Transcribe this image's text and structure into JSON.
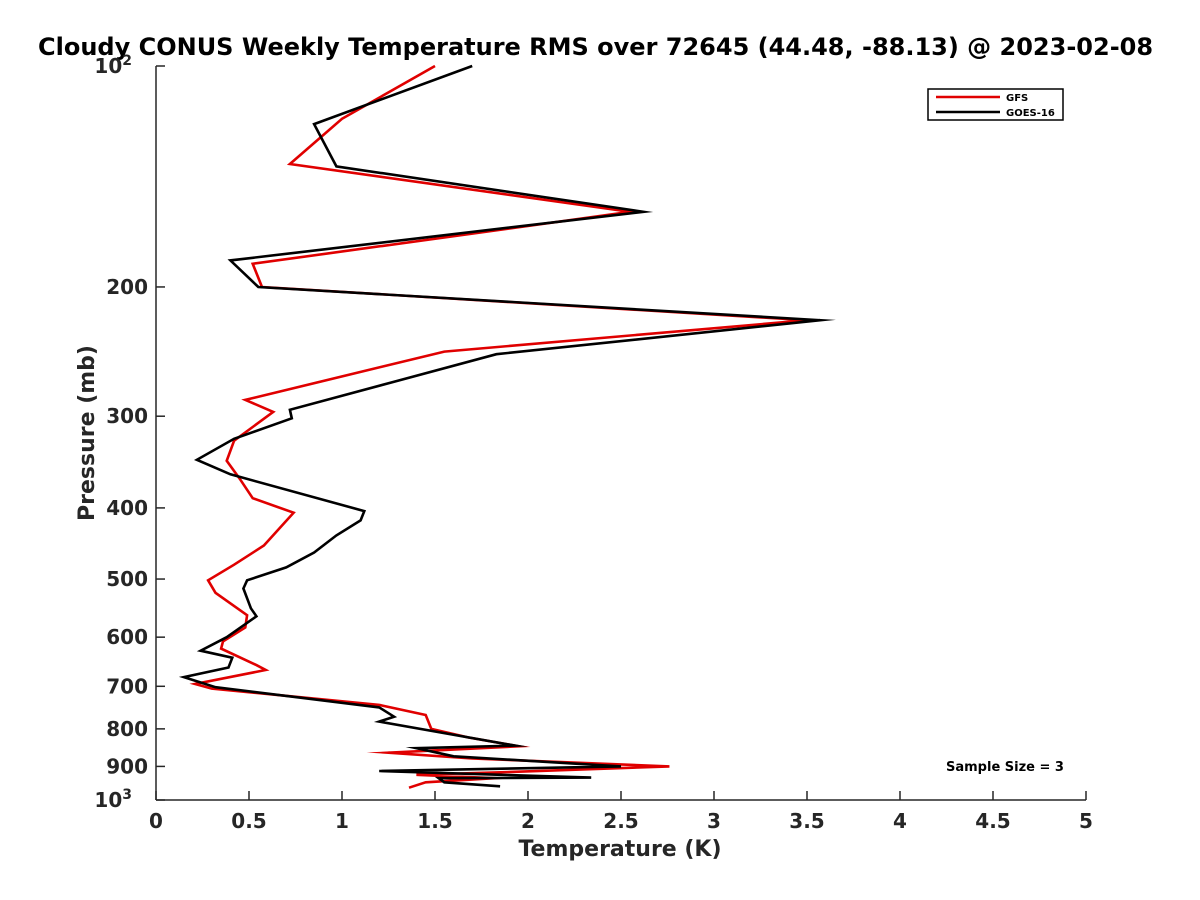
{
  "chart_data": {
    "type": "line",
    "title": "Cloudy CONUS Weekly Temperature RMS over 72645 (44.48, -88.13) @ 2023-02-08",
    "xlabel": "Temperature (K)",
    "ylabel": "Pressure (mb)",
    "xlim": [
      0,
      5
    ],
    "ylim": [
      100,
      1000
    ],
    "y_scale": "log",
    "y_reversed": true,
    "x_ticks": [
      "0",
      "0.5",
      "1",
      "1.5",
      "2",
      "2.5",
      "3",
      "3.5",
      "4",
      "4.5",
      "5"
    ],
    "x_tick_values": [
      0,
      0.5,
      1,
      1.5,
      2,
      2.5,
      3,
      3.5,
      4,
      4.5,
      5
    ],
    "y_ticks": [
      {
        "value": 100,
        "base": "10",
        "exp": "2"
      },
      {
        "value": 200,
        "label": "200"
      },
      {
        "value": 300,
        "label": "300"
      },
      {
        "value": 400,
        "label": "400"
      },
      {
        "value": 500,
        "label": "500"
      },
      {
        "value": 600,
        "label": "600"
      },
      {
        "value": 700,
        "label": "700"
      },
      {
        "value": 800,
        "label": "800"
      },
      {
        "value": 900,
        "label": "900"
      },
      {
        "value": 1000,
        "base": "10",
        "exp": "3"
      }
    ],
    "legend_position": "top-right",
    "annotation": "Sample Size = 3",
    "series": [
      {
        "name": "GFS",
        "color": "#e00000",
        "points": [
          [
            1.5,
            100
          ],
          [
            1.0,
            118
          ],
          [
            0.72,
            136
          ],
          [
            2.55,
            158
          ],
          [
            0.52,
            186
          ],
          [
            0.57,
            200
          ],
          [
            3.5,
            222
          ],
          [
            1.55,
            245
          ],
          [
            0.48,
            285
          ],
          [
            0.63,
            296
          ],
          [
            0.42,
            324
          ],
          [
            0.38,
            345
          ],
          [
            0.45,
            365
          ],
          [
            0.52,
            388
          ],
          [
            0.74,
            406
          ],
          [
            0.58,
            450
          ],
          [
            0.42,
            478
          ],
          [
            0.28,
            502
          ],
          [
            0.32,
            522
          ],
          [
            0.49,
            560
          ],
          [
            0.48,
            582
          ],
          [
            0.36,
            608
          ],
          [
            0.35,
            622
          ],
          [
            0.54,
            655
          ],
          [
            0.59,
            665
          ],
          [
            0.21,
            695
          ],
          [
            0.3,
            705
          ],
          [
            1.2,
            742
          ],
          [
            1.45,
            766
          ],
          [
            1.48,
            800
          ],
          [
            1.68,
            822
          ],
          [
            1.95,
            845
          ],
          [
            1.25,
            862
          ],
          [
            1.7,
            878
          ],
          [
            2.76,
            900
          ],
          [
            1.95,
            915
          ],
          [
            1.4,
            924
          ],
          [
            1.82,
            934
          ],
          [
            1.45,
            946
          ],
          [
            1.36,
            962
          ]
        ]
      },
      {
        "name": "GOES-16",
        "color": "#000000",
        "points": [
          [
            1.7,
            100
          ],
          [
            0.85,
            120
          ],
          [
            0.97,
            137
          ],
          [
            2.62,
            158
          ],
          [
            0.4,
            184
          ],
          [
            0.55,
            200
          ],
          [
            3.57,
            222
          ],
          [
            1.83,
            247
          ],
          [
            0.72,
            294
          ],
          [
            0.73,
            302
          ],
          [
            0.42,
            322
          ],
          [
            0.22,
            344
          ],
          [
            0.4,
            360
          ],
          [
            1.12,
            404
          ],
          [
            1.1,
            416
          ],
          [
            0.97,
            436
          ],
          [
            0.85,
            460
          ],
          [
            0.7,
            482
          ],
          [
            0.49,
            502
          ],
          [
            0.47,
            515
          ],
          [
            0.51,
            548
          ],
          [
            0.54,
            562
          ],
          [
            0.38,
            600
          ],
          [
            0.24,
            626
          ],
          [
            0.41,
            640
          ],
          [
            0.39,
            660
          ],
          [
            0.15,
            680
          ],
          [
            0.32,
            702
          ],
          [
            1.2,
            748
          ],
          [
            1.28,
            770
          ],
          [
            1.2,
            782
          ],
          [
            1.93,
            843
          ],
          [
            1.4,
            850
          ],
          [
            1.6,
            872
          ],
          [
            2.5,
            900
          ],
          [
            1.2,
            913
          ],
          [
            2.34,
            932
          ],
          [
            1.52,
            934
          ],
          [
            1.55,
            946
          ],
          [
            1.85,
            958
          ]
        ]
      }
    ]
  }
}
